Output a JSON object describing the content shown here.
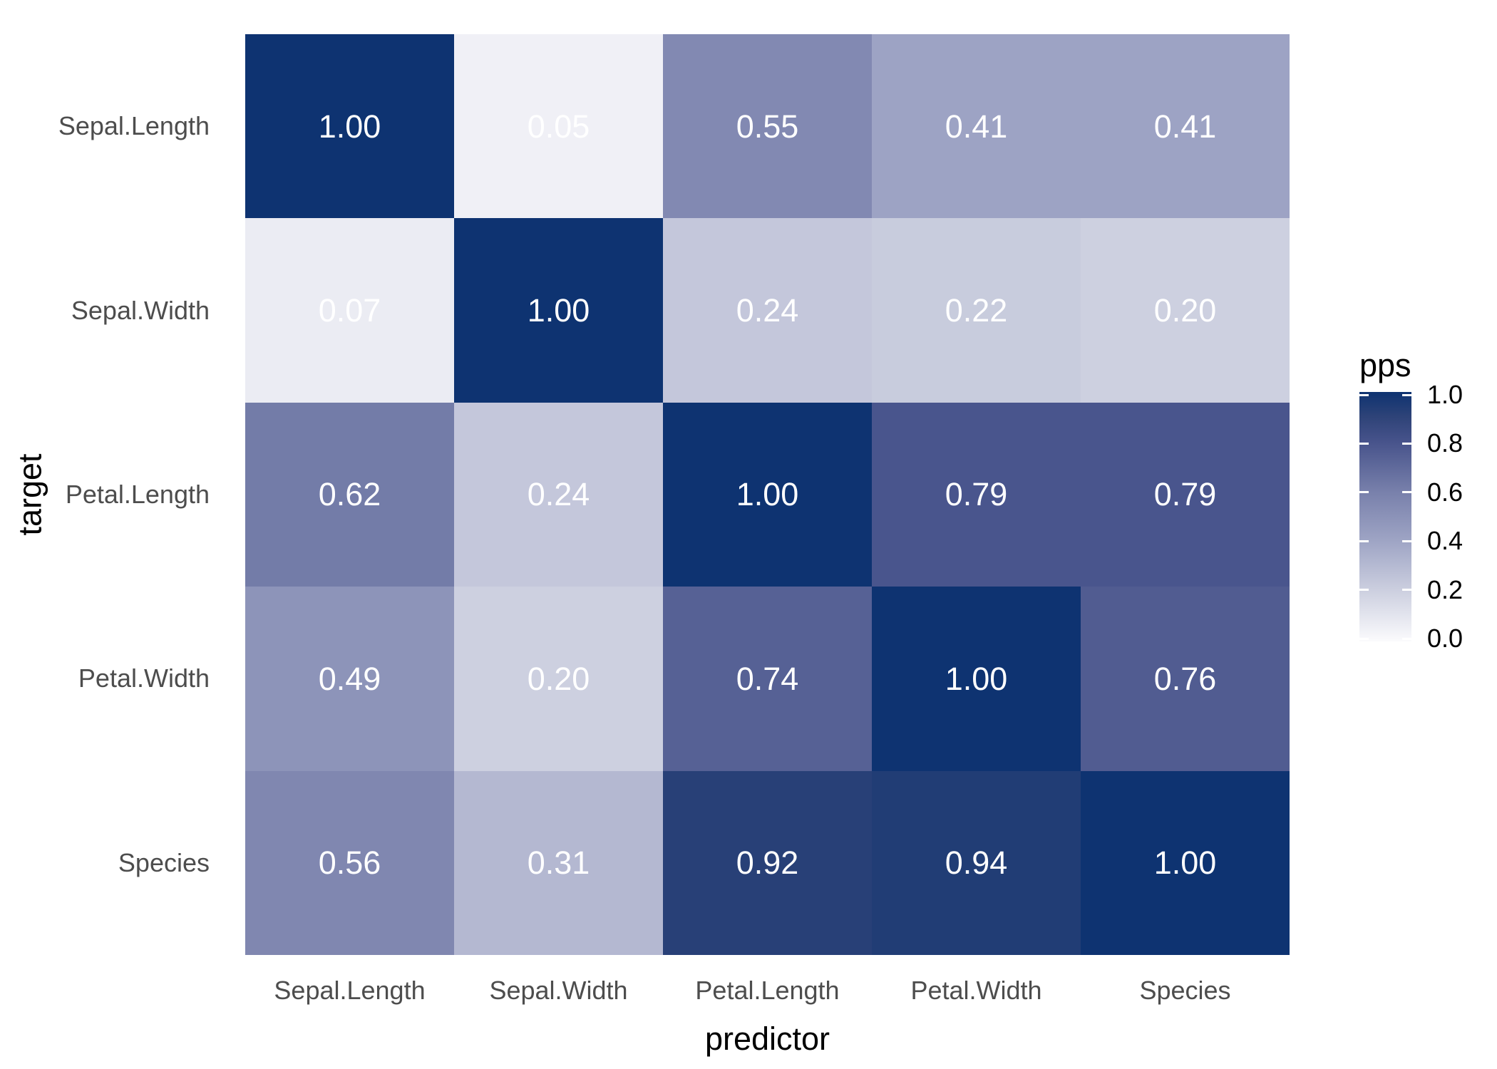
{
  "chart_data": {
    "type": "heatmap",
    "title": "",
    "xlabel": "predictor",
    "ylabel": "target",
    "x_categories": [
      "Sepal.Length",
      "Sepal.Width",
      "Petal.Length",
      "Petal.Width",
      "Species"
    ],
    "y_categories": [
      "Sepal.Length",
      "Sepal.Width",
      "Petal.Length",
      "Petal.Width",
      "Species"
    ],
    "values": [
      [
        1.0,
        0.05,
        0.55,
        0.41,
        0.41
      ],
      [
        0.07,
        1.0,
        0.24,
        0.22,
        0.2
      ],
      [
        0.62,
        0.24,
        1.0,
        0.79,
        0.79
      ],
      [
        0.49,
        0.2,
        0.74,
        1.0,
        0.76
      ],
      [
        0.56,
        0.31,
        0.92,
        0.94,
        1.0
      ]
    ],
    "value_format_decimals": 2,
    "cell_text_color": "#ffffff",
    "axis_text_color": "#4d4d4d",
    "title_text_color": "#000000",
    "grid_on": false,
    "value_range": [
      0.0,
      1.0
    ],
    "legend": {
      "title": "pps",
      "position": "right",
      "tick_labels": [
        "1.0",
        "0.8",
        "0.6",
        "0.4",
        "0.2",
        "0.0"
      ],
      "tick_values": [
        1.0,
        0.8,
        0.6,
        0.4,
        0.2,
        0.0
      ]
    },
    "color_scale_stops": [
      [
        0.0,
        "#FBFBFD"
      ],
      [
        0.2,
        "#CDD0E0"
      ],
      [
        0.4,
        "#9FA5C5"
      ],
      [
        0.6,
        "#7880AB"
      ],
      [
        0.8,
        "#47538B"
      ],
      [
        0.9,
        "#2E4378"
      ],
      [
        1.0,
        "#0E3371"
      ]
    ]
  }
}
